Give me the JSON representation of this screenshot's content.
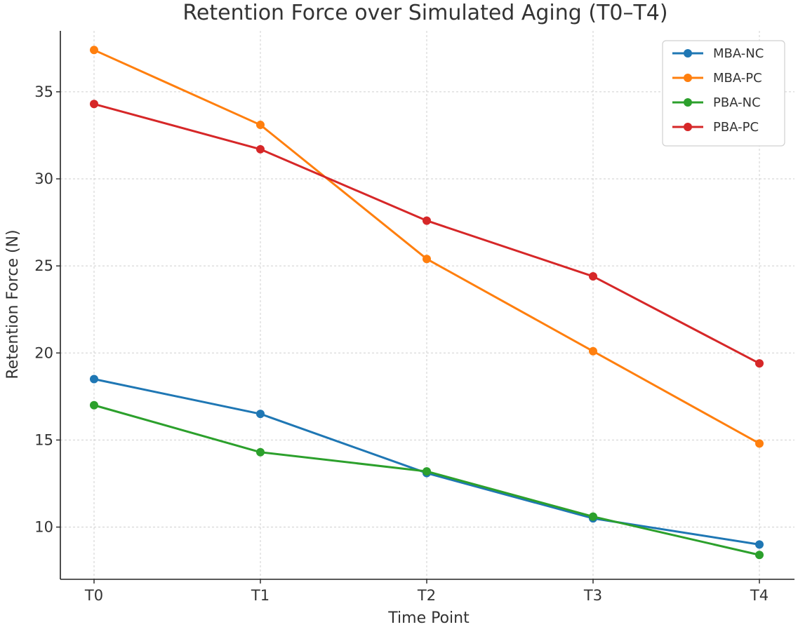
{
  "chart_data": {
    "type": "line",
    "title": "Retention Force over Simulated Aging (T0–T4)",
    "xlabel": "Time Point",
    "ylabel": "Retention Force (N)",
    "categories": [
      "T0",
      "T1",
      "T2",
      "T3",
      "T4"
    ],
    "ylim": [
      7,
      38.5
    ],
    "yticks": [
      10,
      15,
      20,
      25,
      30,
      35
    ],
    "grid": true,
    "legend_position": "top-right",
    "series": [
      {
        "name": "MBA-NC",
        "color": "#1f77b4",
        "values": [
          18.5,
          16.5,
          13.1,
          10.5,
          9.0
        ]
      },
      {
        "name": "MBA-PC",
        "color": "#ff7f0e",
        "values": [
          37.4,
          33.1,
          25.4,
          20.1,
          14.8
        ]
      },
      {
        "name": "PBA-NC",
        "color": "#2ca02c",
        "values": [
          17.0,
          14.3,
          13.2,
          10.6,
          8.4
        ]
      },
      {
        "name": "PBA-PC",
        "color": "#d62728",
        "values": [
          34.3,
          31.7,
          27.6,
          24.4,
          19.4
        ]
      }
    ]
  }
}
